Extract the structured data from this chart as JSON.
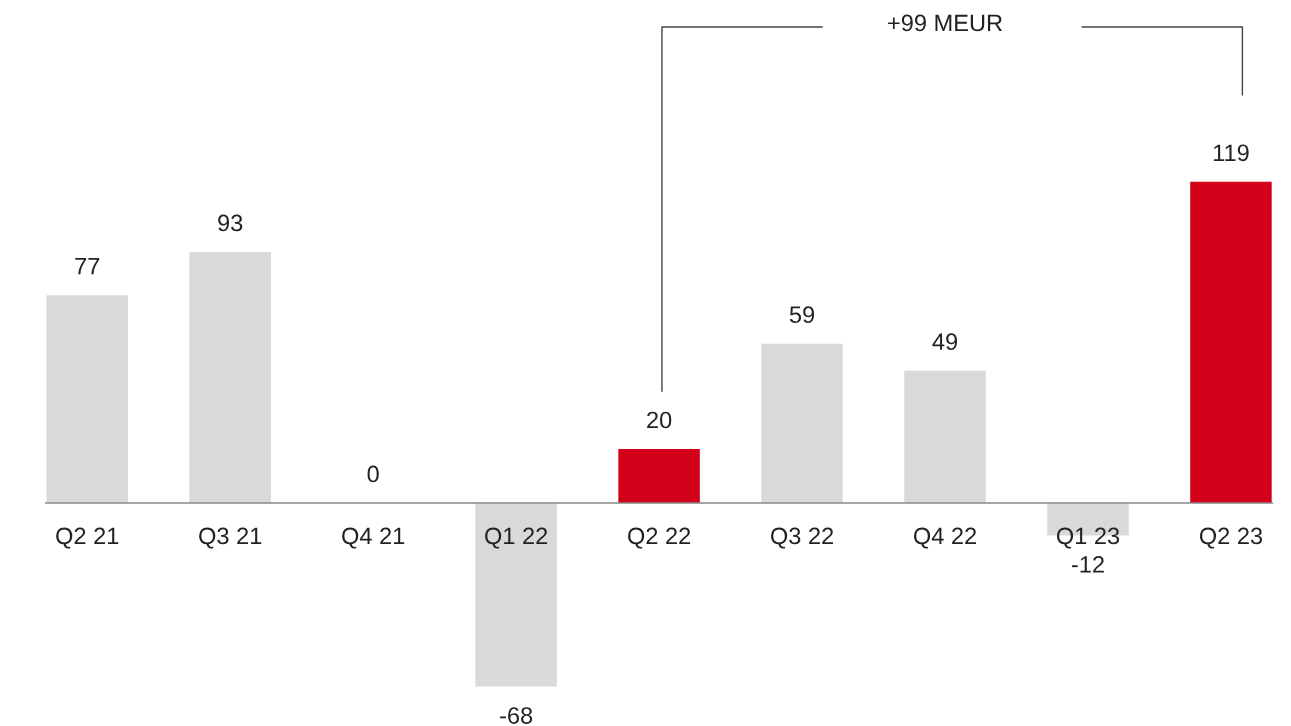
{
  "chart_data": {
    "type": "bar",
    "categories": [
      "Q2 21",
      "Q3 21",
      "Q4 21",
      "Q1 22",
      "Q2 22",
      "Q3 22",
      "Q4 22",
      "Q1 23",
      "Q2 23"
    ],
    "values": [
      77,
      93,
      0,
      -68,
      20,
      59,
      49,
      -12,
      119
    ],
    "colors": [
      "#d9d9db",
      "#d9d9db",
      "#d9d9db",
      "#d9d9db",
      "#d20019",
      "#d9d9db",
      "#d9d9db",
      "#d9d9db",
      "#d20019"
    ],
    "data_labels": true,
    "annotations": [
      "+99 MEUR"
    ]
  }
}
